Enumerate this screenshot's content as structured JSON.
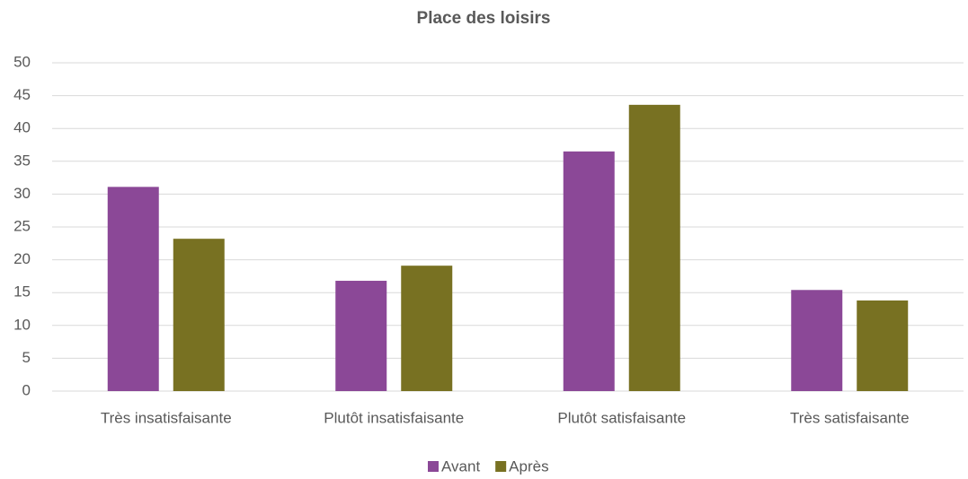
{
  "chart_data": {
    "type": "bar",
    "title": "Place des loisirs",
    "categories": [
      "Très insatisfaisante",
      "Plutôt insatisfaisante",
      "Plutôt satisfaisante",
      "Très satisfaisante"
    ],
    "series": [
      {
        "name": "Avant",
        "color": "#8b4897",
        "values": [
          31.1,
          16.8,
          36.5,
          15.4
        ]
      },
      {
        "name": "Après",
        "color": "#787122",
        "values": [
          23.2,
          19.1,
          43.6,
          13.8
        ]
      }
    ],
    "ylim": [
      0,
      50
    ],
    "yticks": [
      0,
      5,
      10,
      15,
      20,
      25,
      30,
      35,
      40,
      45,
      50
    ],
    "grid": true,
    "legend": "bottom"
  }
}
